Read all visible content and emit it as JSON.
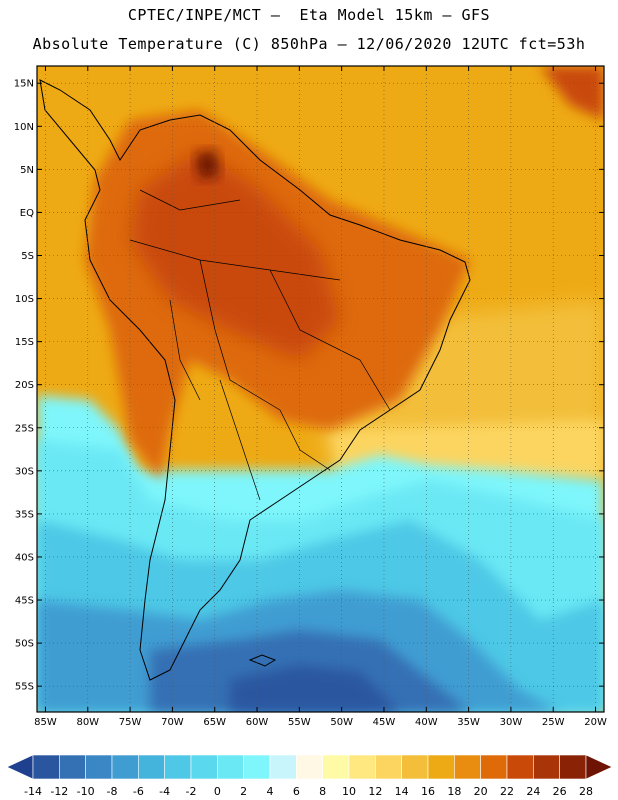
{
  "header": {
    "title_line1": "CPTEC/INPE/MCT –  Eta Model 15km – GFS",
    "title_line2": "Absolute Temperature (C) 850hPa – 12/06/2020 12UTC fct=53h"
  },
  "map": {
    "lat_labels": [
      "15N",
      "10N",
      "5N",
      "EQ",
      "5S",
      "10S",
      "15S",
      "20S",
      "25S",
      "30S",
      "35S",
      "40S",
      "45S",
      "50S",
      "55S"
    ],
    "lon_labels": [
      "85W",
      "80W",
      "75W",
      "70W",
      "65W",
      "60W",
      "55W",
      "50W",
      "45W",
      "40W",
      "35W",
      "30W",
      "25W",
      "20W"
    ],
    "gridlines": "dotted",
    "lon_range": [
      -86,
      -19
    ],
    "lat_range": [
      17,
      -58
    ]
  },
  "colorbar": {
    "labels": [
      "-14",
      "-12",
      "-10",
      "-8",
      "-6",
      "-4",
      "-2",
      "0",
      "2",
      "4",
      "6",
      "8",
      "10",
      "12",
      "14",
      "16",
      "18",
      "20",
      "22",
      "24",
      "26",
      "28"
    ],
    "colors": [
      "#1f3f8f",
      "#2a56a0",
      "#3470b4",
      "#3b86c4",
      "#3f9dd2",
      "#44b4dd",
      "#4ec8e6",
      "#5ad8ee",
      "#6ae8f4",
      "#7ef6fb",
      "#c8f4fb",
      "#fff8e4",
      "#fffaa6",
      "#ffe880",
      "#fcd560",
      "#f3bf3a",
      "#eeaa14",
      "#e88d10",
      "#de6a08",
      "#c94a08",
      "#a83408",
      "#8a2205",
      "#6e1404"
    ]
  }
}
